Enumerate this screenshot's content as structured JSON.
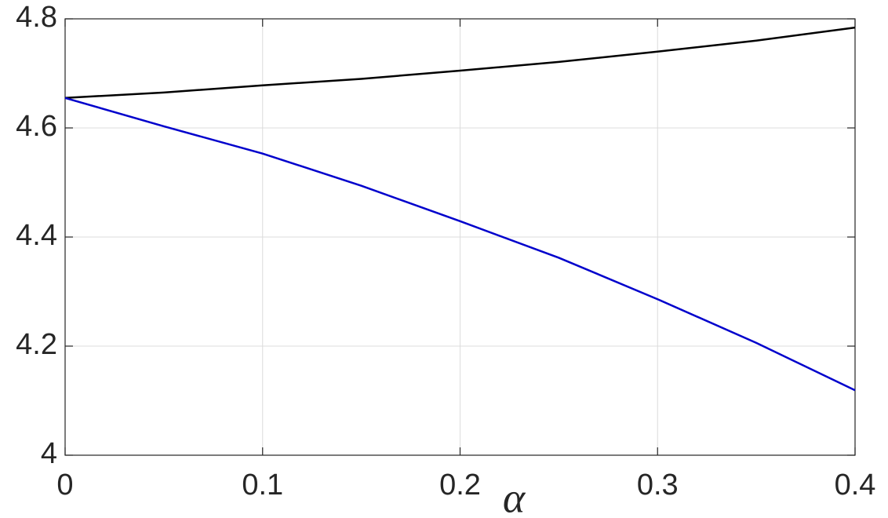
{
  "chart_data": {
    "type": "line",
    "xlabel": "α",
    "x": [
      0,
      0.05,
      0.1,
      0.15,
      0.2,
      0.25,
      0.3,
      0.35,
      0.4
    ],
    "series": [
      {
        "color": "#000000",
        "values": [
          4.655,
          4.665,
          4.678,
          4.69,
          4.705,
          4.721,
          4.74,
          4.76,
          4.784
        ]
      },
      {
        "color": "#0000cc",
        "values": [
          4.655,
          4.603,
          4.553,
          4.494,
          4.429,
          4.362,
          4.286,
          4.206,
          4.119
        ]
      }
    ],
    "xlim": [
      0,
      0.4
    ],
    "xticks": [
      0,
      0.1,
      0.2,
      0.3,
      0.4
    ],
    "ylim": [
      4,
      4.8
    ],
    "yticks": [
      4,
      4.2,
      4.4,
      4.6,
      4.8
    ],
    "grid": true
  }
}
